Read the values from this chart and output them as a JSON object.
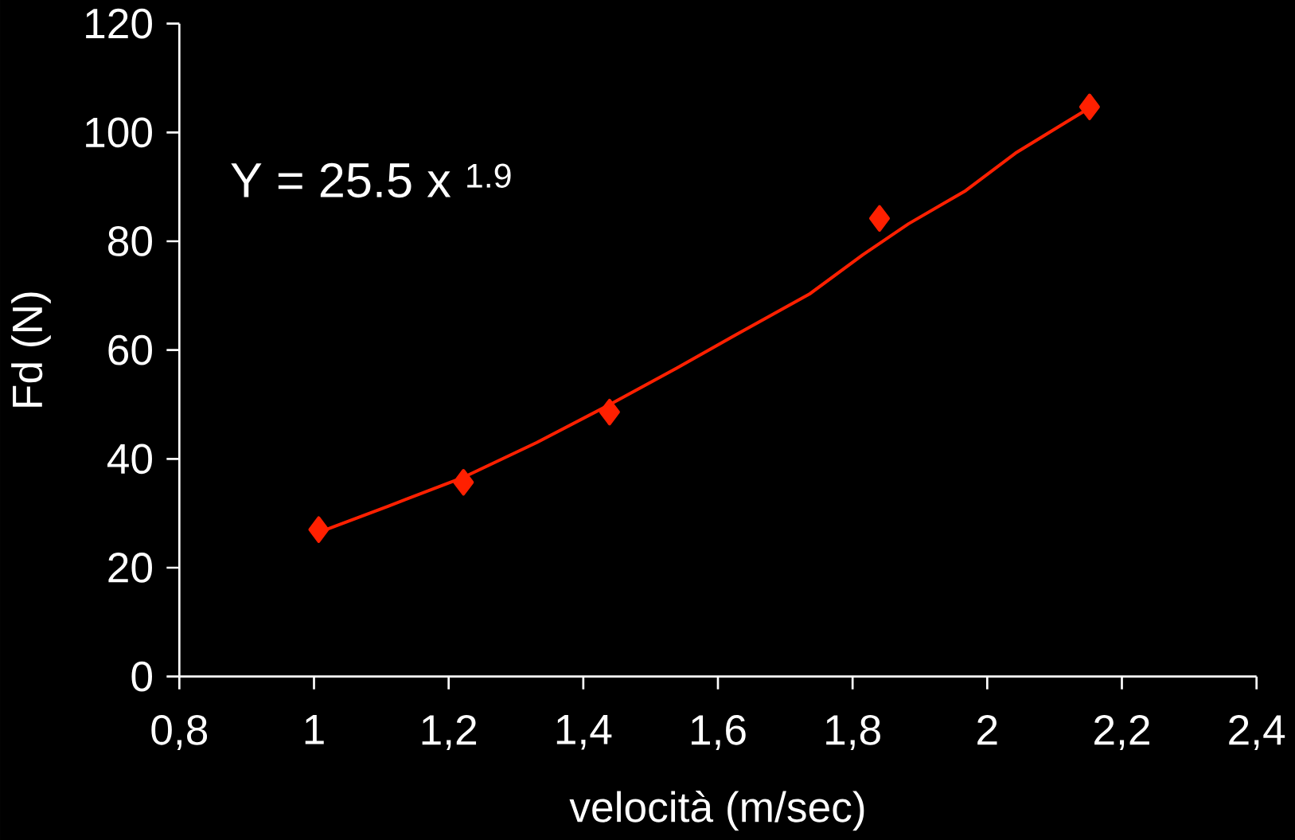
{
  "chart_data": {
    "type": "scatter",
    "xlabel": "velocità (m/sec)",
    "ylabel": "Fd (N)",
    "annotations": [
      "Y = 25.5 x $^{1.9}$"
    ],
    "xlim": [
      0.8,
      2.4
    ],
    "ylim": [
      0,
      120
    ],
    "xticks": [
      {
        "value": 0.8,
        "label": "0,8"
      },
      1,
      {
        "value": 1.2,
        "label": "1,2"
      },
      {
        "value": 1.4,
        "label": "1,4"
      },
      {
        "value": 1.6,
        "label": "1,6"
      },
      {
        "value": 1.8,
        "label": "1,8"
      },
      2,
      {
        "value": 2.2,
        "label": "2,2"
      },
      {
        "value": 2.4,
        "label": "2,4"
      }
    ],
    "yticks": [
      0,
      20,
      40,
      60,
      80,
      100,
      120
    ],
    "grid": false,
    "series": [
      {
        "type": "line",
        "color": "#ff2000",
        "marker": "none",
        "x": [
          1.007,
          1.11,
          1.22,
          1.331,
          1.441,
          1.539,
          1.625,
          1.736,
          1.815,
          1.883,
          1.968,
          2.042,
          2.116,
          2.152
        ],
        "values": [
          26.5,
          31.3,
          36.5,
          43,
          50.1,
          56.7,
          62.7,
          70.3,
          77.5,
          83.2,
          89.3,
          96.2,
          101.8,
          104.5
        ]
      },
      {
        "color": "#ff2000",
        "marker": "diamond",
        "x": [
          1.007,
          1.222,
          1.439,
          1.84,
          2.152
        ],
        "values": [
          27.0,
          35.7,
          48.6,
          84.2,
          104.7
        ]
      }
    ]
  }
}
